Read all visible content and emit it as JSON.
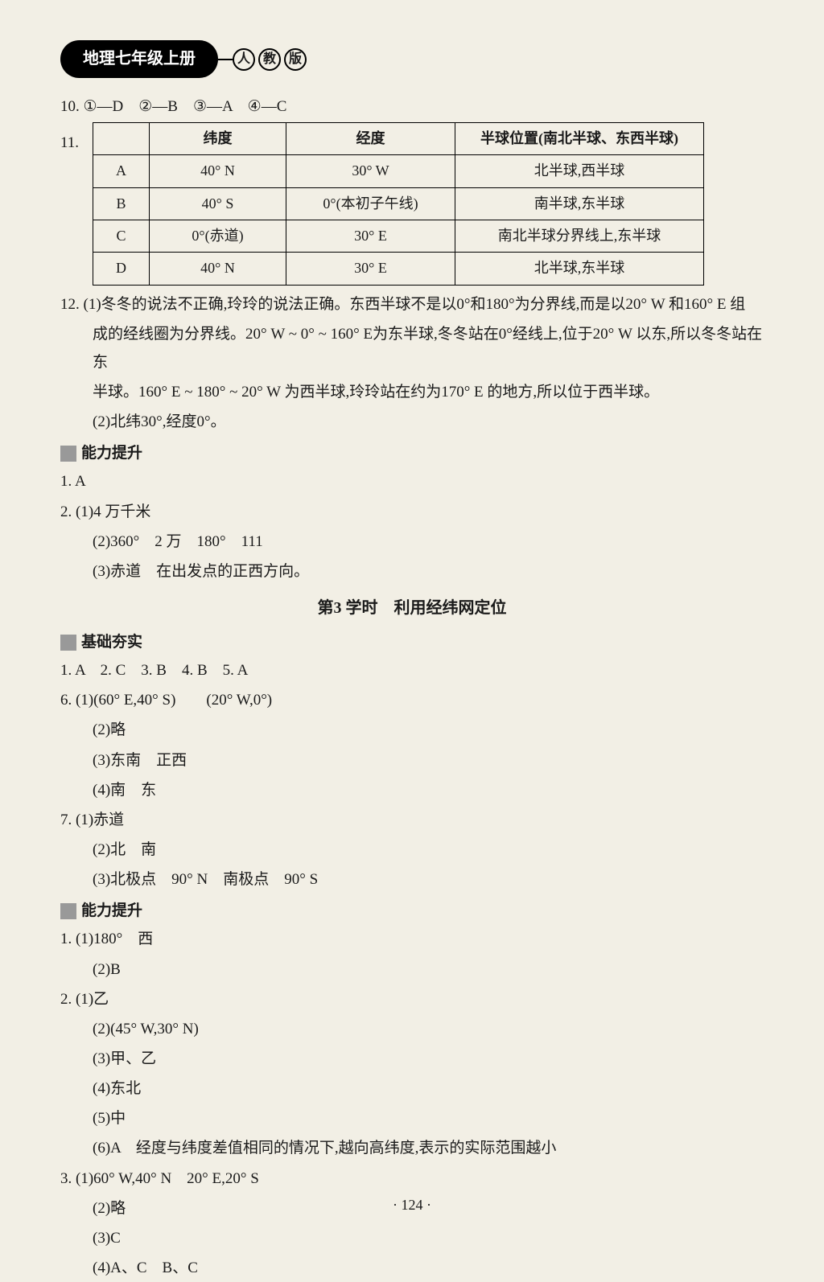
{
  "header": {
    "badge": "地理七年级上册",
    "circles": [
      "人",
      "教",
      "版"
    ]
  },
  "q10": "10. ①—D　②—B　③—A　④—C",
  "q11": {
    "label": "11.",
    "headers": [
      "",
      "纬度",
      "经度",
      "半球位置(南北半球、东西半球)"
    ],
    "rows": [
      [
        "A",
        "40° N",
        "30° W",
        "北半球,西半球"
      ],
      [
        "B",
        "40° S",
        "0°(本初子午线)",
        "南半球,东半球"
      ],
      [
        "C",
        "0°(赤道)",
        "30° E",
        "南北半球分界线上,东半球"
      ],
      [
        "D",
        "40° N",
        "30° E",
        "北半球,东半球"
      ]
    ]
  },
  "q12": {
    "l1": "12. (1)冬冬的说法不正确,玲玲的说法正确。东西半球不是以0°和180°为分界线,而是以20° W 和160° E 组",
    "l2": "成的经线圈为分界线。20° W ~ 0° ~ 160° E为东半球,冬冬站在0°经线上,位于20° W 以东,所以冬冬站在东",
    "l3": "半球。160° E ~ 180° ~ 20° W 为西半球,玲玲站在约为170° E 的地方,所以位于西半球。",
    "l4": "(2)北纬30°,经度0°。"
  },
  "ability1": {
    "title": "能力提升",
    "a1": "1. A",
    "a2_1": "2. (1)4 万千米",
    "a2_2": "(2)360°　2 万　180°　111",
    "a2_3": "(3)赤道　在出发点的正西方向。"
  },
  "lesson": "第3 学时　利用经纬网定位",
  "basic": {
    "title": "基础夯实",
    "b1": "1. A　2. C　3. B　4. B　5. A",
    "b6_1": "6. (1)(60° E,40° S)　　(20° W,0°)",
    "b6_2": "(2)略",
    "b6_3": "(3)东南　正西",
    "b6_4": "(4)南　东",
    "b7_1": "7. (1)赤道",
    "b7_2": "(2)北　南",
    "b7_3": "(3)北极点　90° N　南极点　90° S"
  },
  "ability2": {
    "title": "能力提升",
    "c1_1": "1. (1)180°　西",
    "c1_2": "(2)B",
    "c2_1": "2. (1)乙",
    "c2_2": "(2)(45° W,30° N)",
    "c2_3": "(3)甲、乙",
    "c2_4": "(4)东北",
    "c2_5": "(5)中",
    "c2_6": "(6)A　经度与纬度差值相同的情况下,越向高纬度,表示的实际范围越小",
    "c3_1": "3. (1)60° W,40° N　20° E,20° S",
    "c3_2": "(2)略",
    "c3_3": "(3)C",
    "c3_4": "(4)A、C　B、C"
  },
  "pageNum": "· 124 ·"
}
